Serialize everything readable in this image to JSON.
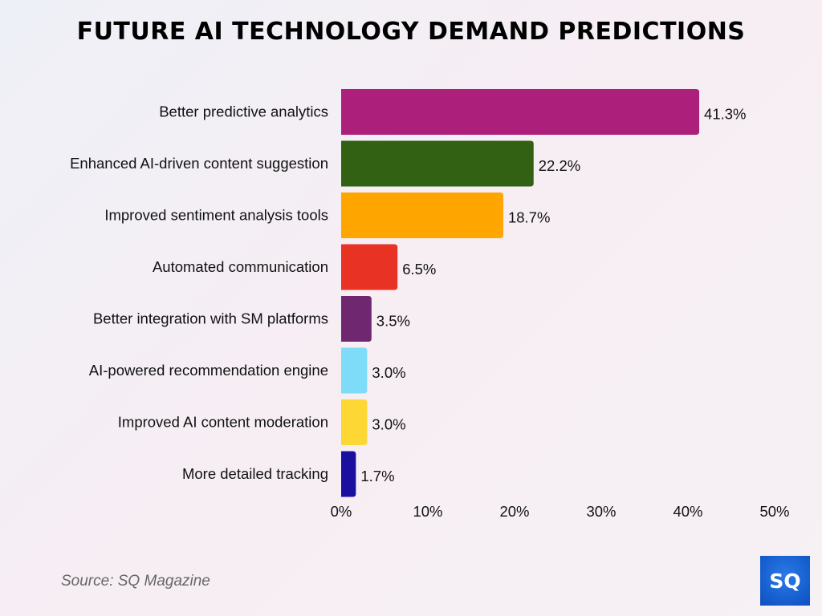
{
  "chart_data": {
    "type": "bar",
    "orientation": "horizontal",
    "title": "FUTURE AI TECHNOLOGY DEMAND PREDICTIONS",
    "categories": [
      "Better predictive analytics",
      "Enhanced AI-driven content suggestion",
      "Improved sentiment analysis tools",
      "Automated communication",
      "Better integration with SM platforms",
      "AI-powered recommendation engine",
      "Improved AI content moderation",
      "More detailed tracking"
    ],
    "values": [
      41.3,
      22.2,
      18.7,
      6.5,
      3.5,
      3.0,
      3.0,
      1.7
    ],
    "data_labels": [
      "41.3%",
      "22.2%",
      "18.7%",
      "6.5%",
      "3.5%",
      "3.0%",
      "3.0%",
      "1.7%"
    ],
    "colors": [
      "#ac1f7a",
      "#336114",
      "#ffa500",
      "#e83224",
      "#6f2870",
      "#7fdcf9",
      "#fdd835",
      "#1b0fa0"
    ],
    "xlim": [
      0,
      50
    ],
    "xticks": [
      "0%",
      "10%",
      "20%",
      "30%",
      "40%",
      "50%"
    ],
    "grid": false,
    "xlabel": "",
    "ylabel": ""
  },
  "source": "Source: SQ Magazine",
  "logo_text": "SQ"
}
